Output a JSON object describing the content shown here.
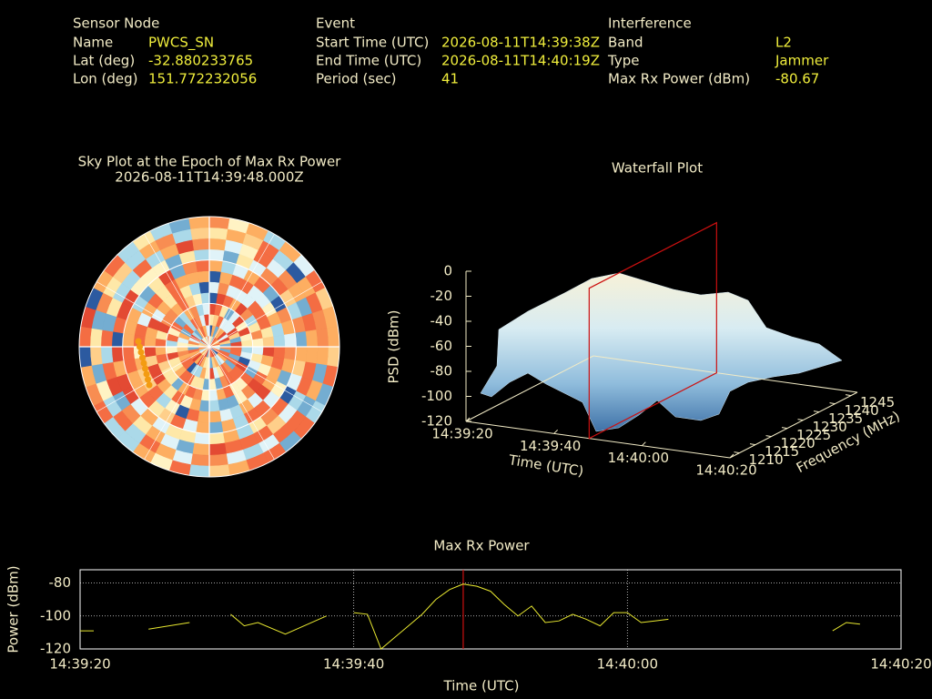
{
  "header": {
    "columns": [
      {
        "title": "Sensor Node",
        "fields": [
          {
            "label": "Name",
            "value": "PWCS_SN"
          },
          {
            "label": "Lat (deg)",
            "value": "-32.880233765"
          },
          {
            "label": "Lon (deg)",
            "value": "151.772232056"
          }
        ]
      },
      {
        "title": "Event",
        "fields": [
          {
            "label": "Start Time (UTC)",
            "value": "2026-08-11T14:39:38Z"
          },
          {
            "label": "End Time (UTC)",
            "value": "2026-08-11T14:40:19Z"
          },
          {
            "label": "Period (sec)",
            "value": "41"
          }
        ]
      },
      {
        "title": "Interference",
        "fields": [
          {
            "label": "Band",
            "value": "L2"
          },
          {
            "label": "Type",
            "value": "Jammer"
          },
          {
            "label": "Max Rx Power (dBm)",
            "value": "-80.67"
          }
        ]
      }
    ]
  },
  "chart_data": [
    {
      "type": "polar-heatmap",
      "title": "Sky Plot at the Epoch of Max Rx Power",
      "subtitle": "2026-08-11T14:39:48.000Z"
    },
    {
      "type": "surface",
      "title": "Waterfall Plot",
      "xlabel": "Time (UTC)",
      "ylabel": "Frequency (MHz)",
      "zlabel": "PSD (dBm)",
      "xlim": [
        "14:39:20",
        "14:40:20"
      ],
      "xticks": [
        "14:39:20",
        "14:39:40",
        "14:40:00",
        "14:40:20"
      ],
      "ylim": [
        1207,
        1247
      ],
      "yticks": [
        1210,
        1215,
        1220,
        1225,
        1230,
        1235,
        1240,
        1245
      ],
      "zlim": [
        -120,
        0
      ],
      "zticks": [
        -120,
        -100,
        -80,
        -60,
        -40,
        -20,
        0
      ],
      "marker_x": "14:39:48",
      "marker_color": "#cc1010"
    },
    {
      "type": "line",
      "title": "Max Rx Power",
      "xlabel": "Time (UTC)",
      "ylabel": "Power (dBm)",
      "xlim": [
        "14:39:20",
        "14:40:20"
      ],
      "xticks": [
        "14:39:20",
        "14:39:40",
        "14:40:00",
        "14:40:20"
      ],
      "ylim": [
        -120,
        -72
      ],
      "yticks": [
        -120,
        -100,
        -80
      ],
      "grid": true,
      "marker_x": "14:39:48",
      "marker_color": "#cc1010",
      "x": [
        "14:39:20",
        "14:39:21",
        "14:39:22",
        "14:39:25",
        "14:39:28",
        "14:39:29",
        "14:39:31",
        "14:39:32",
        "14:39:33",
        "14:39:35",
        "14:39:38",
        "14:39:39",
        "14:39:40",
        "14:39:41",
        "14:39:42",
        "14:39:43",
        "14:39:44",
        "14:39:45",
        "14:39:46",
        "14:39:47",
        "14:39:48",
        "14:39:49",
        "14:39:50",
        "14:39:51",
        "14:39:52",
        "14:39:53",
        "14:39:54",
        "14:39:55",
        "14:39:56",
        "14:39:57",
        "14:39:58",
        "14:39:59",
        "14:40:00",
        "14:40:01",
        "14:40:02",
        "14:40:03",
        "14:40:04",
        "14:40:15",
        "14:40:16",
        "14:40:17"
      ],
      "series": [
        {
          "color": "#e8e830",
          "values": [
            -109,
            -109,
            null,
            -108,
            -104,
            null,
            -99,
            -106,
            -104,
            -111,
            -100,
            null,
            -98,
            -99,
            -120,
            -113,
            -106,
            -99,
            -90,
            -84,
            -80.67,
            -82,
            -85,
            -93,
            -100,
            -94,
            -104,
            -103,
            -99,
            -102,
            -106,
            -98,
            -98,
            -104,
            -103,
            -102,
            null,
            -109,
            -104,
            -105
          ]
        }
      ]
    }
  ]
}
